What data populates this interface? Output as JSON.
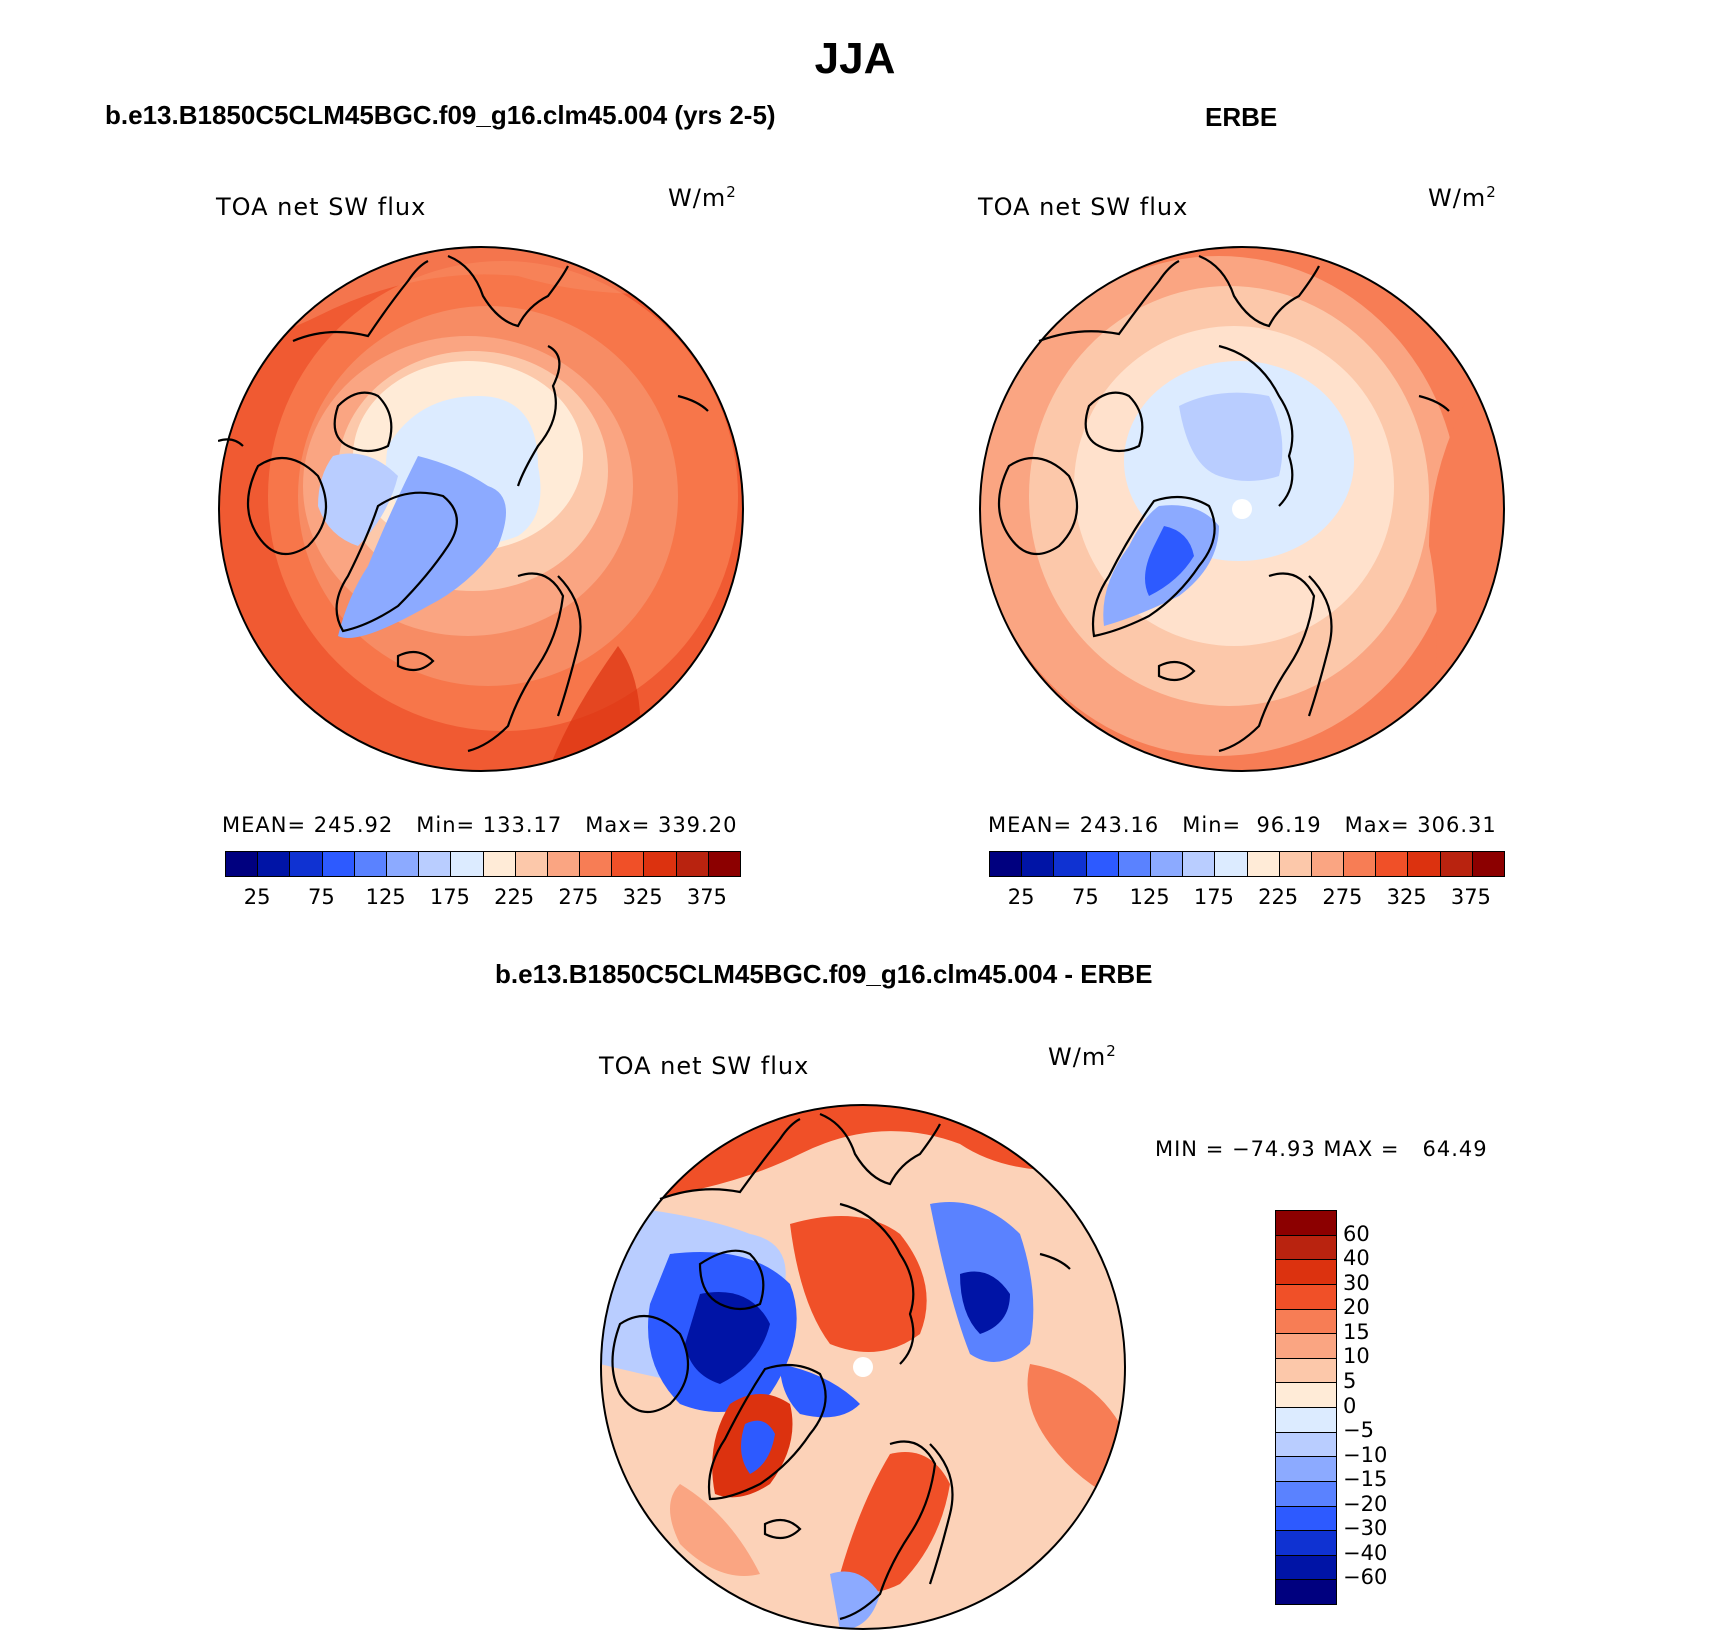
{
  "title": "JJA",
  "panels": [
    {
      "id": "model",
      "header": "b.e13.B1850C5CLM45BGC.f09_g16.clm45.004 (yrs 2-5)",
      "field": "TOA net SW flux",
      "units_base": "W/m",
      "units_sup": "2",
      "stats": "MEAN= 245.92   Min= 133.17   Max= 339.20"
    },
    {
      "id": "obs",
      "header": "ERBE",
      "field": "TOA net SW flux",
      "units_base": "W/m",
      "units_sup": "2",
      "stats": "MEAN= 243.16   Min=  96.19   Max= 306.31"
    }
  ],
  "diff_panel": {
    "header": "b.e13.B1850C5CLM45BGC.f09_g16.clm45.004 - ERBE",
    "field": "TOA net SW flux",
    "units_base": "W/m",
    "units_sup": "2",
    "stats": "MIN = −74.93 MAX =   64.49"
  },
  "abs_colorbar": {
    "colors": [
      "#00007f",
      "#0014a6",
      "#0f32d2",
      "#2d5aff",
      "#5a82ff",
      "#8caaff",
      "#b9cdff",
      "#dcebff",
      "#ffebd7",
      "#fcc8aa",
      "#faa582",
      "#f77d55",
      "#f05028",
      "#dc320f",
      "#b9230f",
      "#8c0000"
    ],
    "labels": [
      "25",
      "75",
      "125",
      "175",
      "225",
      "275",
      "325",
      "375"
    ]
  },
  "diff_colorbar": {
    "colors": [
      "#8c0000",
      "#b9230f",
      "#dc320f",
      "#f05028",
      "#f77d55",
      "#faa582",
      "#fcc8aa",
      "#ffebd7",
      "#dcebff",
      "#b9cdff",
      "#8caaff",
      "#5a82ff",
      "#2d5aff",
      "#0f32d2",
      "#0014a6",
      "#00007f"
    ],
    "labels": [
      "60",
      "40",
      "30",
      "20",
      "15",
      "10",
      "5",
      "0",
      "−5",
      "−10",
      "−15",
      "−20",
      "−30",
      "−40",
      "−60"
    ]
  },
  "map_colors": {
    "coast": "#000000",
    "model_outer": "#f05a32",
    "model_mid": "#f78c64",
    "model_inner": "#fcc8aa",
    "model_ice": "#dcebff",
    "model_ice2": "#8caaff",
    "obs_outer": "#f77d55",
    "obs_mid": "#faa582",
    "obs_inner": "#ffe1cc",
    "obs_ice": "#cfe0ff",
    "obs_ice2": "#5a82ff",
    "diff_bg": "#fcd2b8",
    "diff_red": "#f05028",
    "diff_blue": "#2d5aff",
    "diff_dblue": "#0014a6",
    "diff_lblue": "#b9cdff"
  }
}
